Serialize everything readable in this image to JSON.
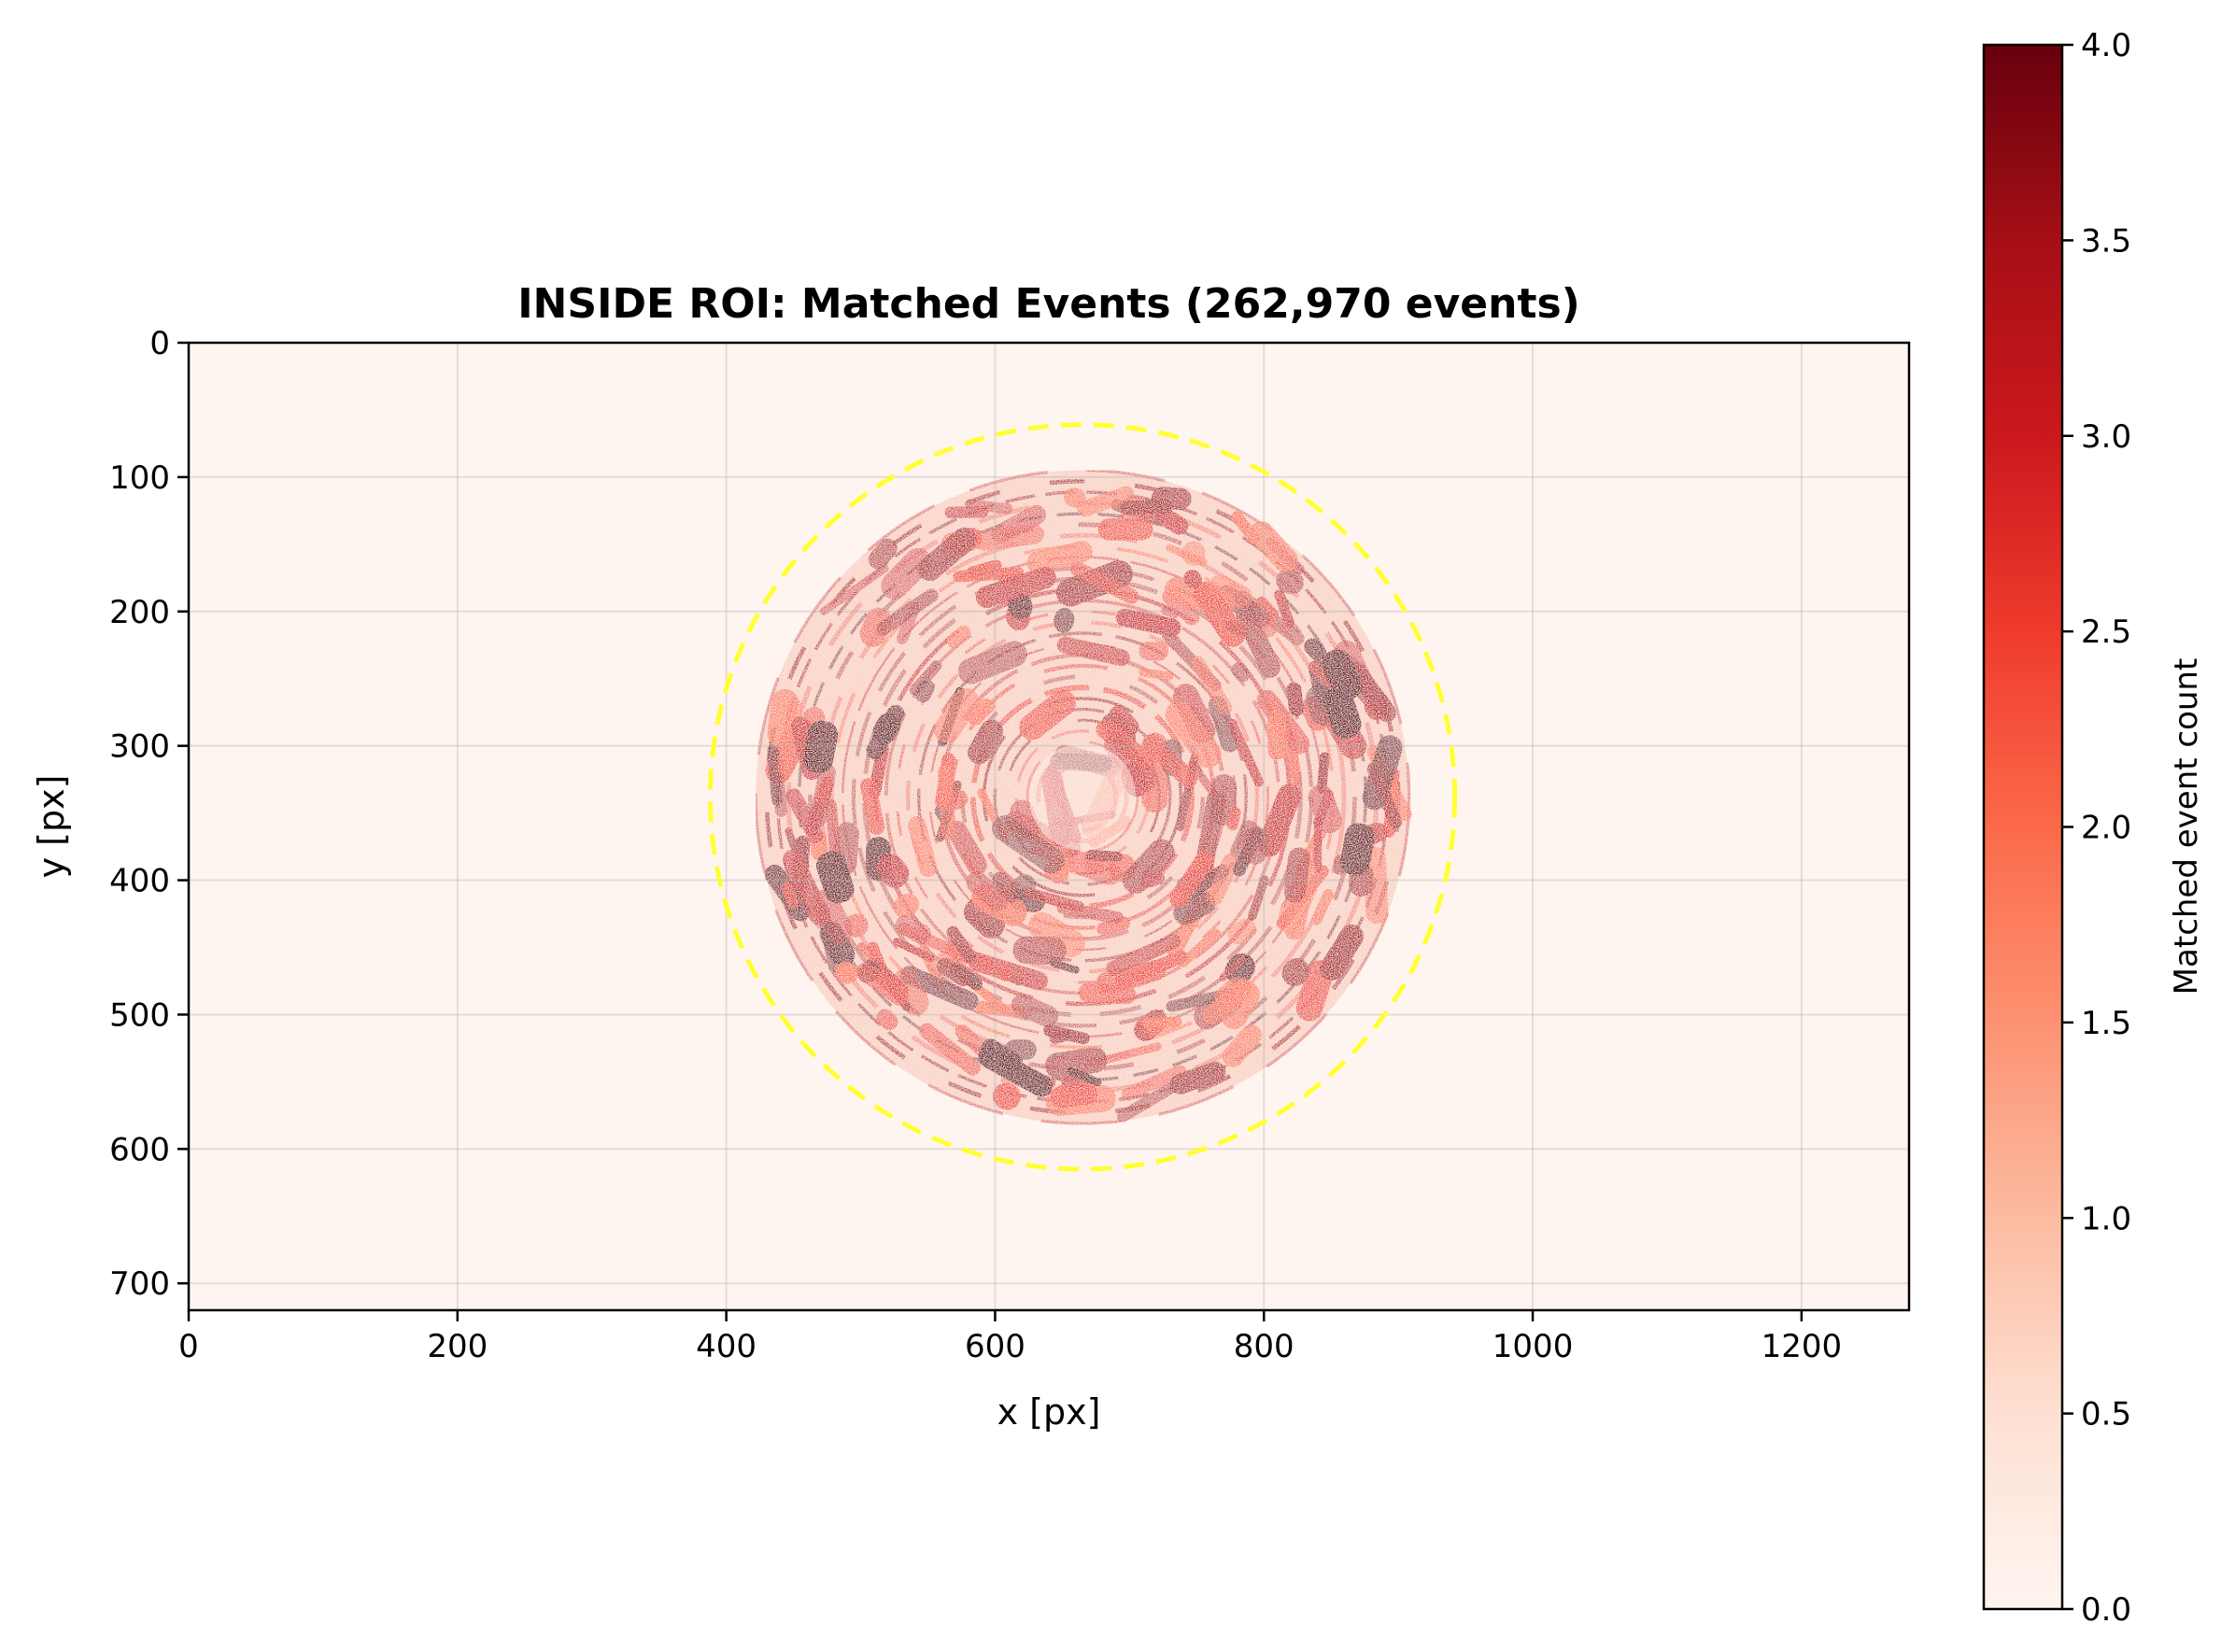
{
  "chart_data": {
    "type": "heatmap",
    "title": "INSIDE ROI: Matched Events (262,970 events)",
    "xlabel": "x [px]",
    "ylabel": "y [px]",
    "xlim": [
      0,
      1280
    ],
    "ylim": [
      720,
      0
    ],
    "xticks": [
      0,
      200,
      400,
      600,
      800,
      1000,
      1200
    ],
    "yticks": [
      0,
      100,
      200,
      300,
      400,
      500,
      600,
      700
    ],
    "grid": true,
    "colormap": "Reds",
    "colormap_stops": [
      "#fff5f0",
      "#fee0d2",
      "#fcbba1",
      "#fc9272",
      "#fb6a4a",
      "#ef3b2c",
      "#cb181d",
      "#a50f15",
      "#67000d"
    ],
    "colorbar": {
      "label": "Matched event count",
      "range": [
        0.0,
        4.0
      ],
      "ticks": [
        "0.0",
        "0.5",
        "1.0",
        "1.5",
        "2.0",
        "2.5",
        "3.0",
        "3.5",
        "4.0"
      ]
    },
    "roi_circle": {
      "center_x": 665,
      "center_y": 338,
      "radius": 277,
      "color": "#ffff33",
      "style": "dashed"
    },
    "event_blob": {
      "center_x": 665,
      "center_y": 338,
      "radius": 248,
      "peak_count": 4.0
    }
  }
}
